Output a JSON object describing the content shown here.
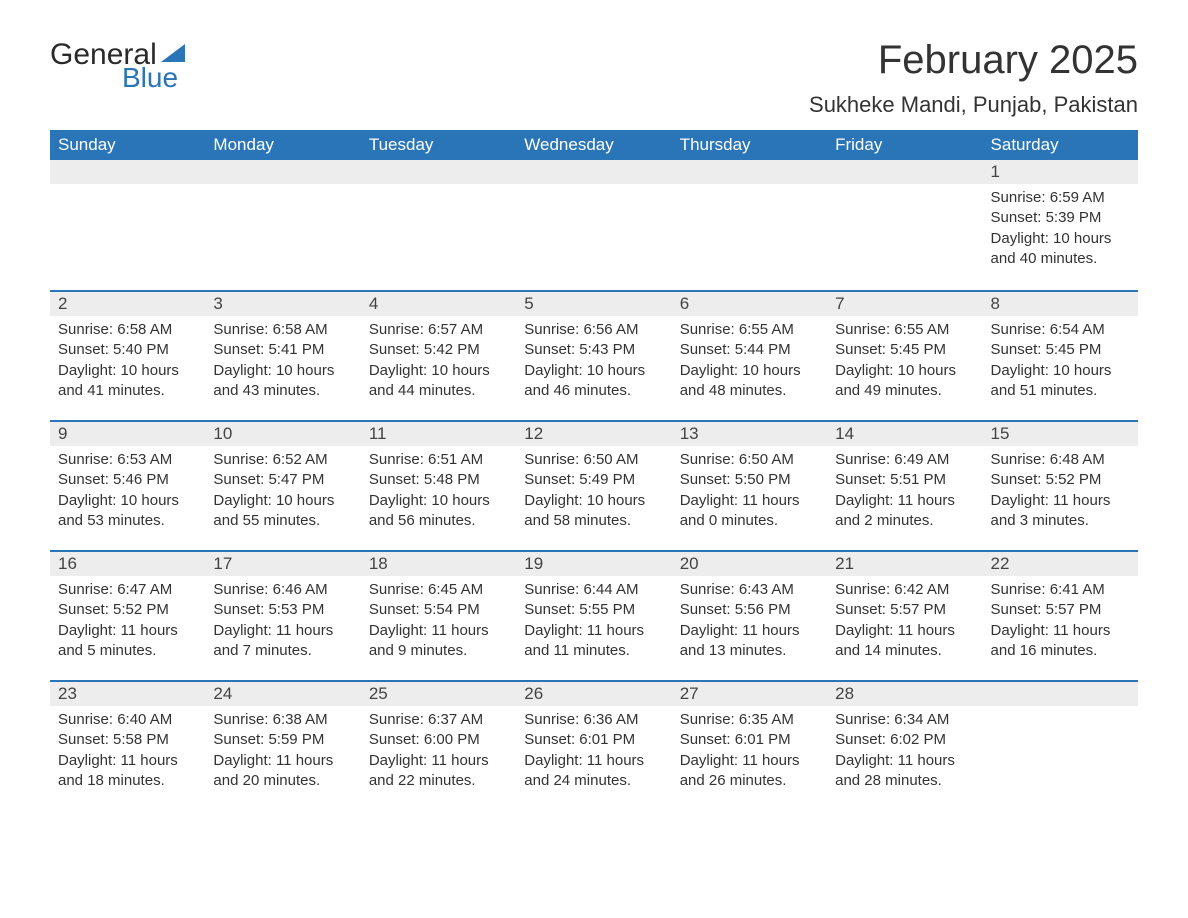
{
  "logo": {
    "text1": "General",
    "text2": "Blue",
    "text1_color": "#292929",
    "text2_color": "#2a74b8"
  },
  "title": "February 2025",
  "location": "Sukheke Mandi, Punjab, Pakistan",
  "colors": {
    "header_bg": "#2a74b8",
    "header_text": "#ffffff",
    "dayrow_bg": "#ededed",
    "dayrow_border": "#2a74b8",
    "body_text": "#333333",
    "page_bg": "#ffffff"
  },
  "fonts": {
    "title_size": 40,
    "location_size": 22,
    "header_size": 17,
    "body_size": 15
  },
  "columns": [
    "Sunday",
    "Monday",
    "Tuesday",
    "Wednesday",
    "Thursday",
    "Friday",
    "Saturday"
  ],
  "weeks": [
    [
      null,
      null,
      null,
      null,
      null,
      null,
      {
        "d": "1",
        "sunrise": "6:59 AM",
        "sunset": "5:39 PM",
        "daylight": "10 hours and 40 minutes."
      }
    ],
    [
      {
        "d": "2",
        "sunrise": "6:58 AM",
        "sunset": "5:40 PM",
        "daylight": "10 hours and 41 minutes."
      },
      {
        "d": "3",
        "sunrise": "6:58 AM",
        "sunset": "5:41 PM",
        "daylight": "10 hours and 43 minutes."
      },
      {
        "d": "4",
        "sunrise": "6:57 AM",
        "sunset": "5:42 PM",
        "daylight": "10 hours and 44 minutes."
      },
      {
        "d": "5",
        "sunrise": "6:56 AM",
        "sunset": "5:43 PM",
        "daylight": "10 hours and 46 minutes."
      },
      {
        "d": "6",
        "sunrise": "6:55 AM",
        "sunset": "5:44 PM",
        "daylight": "10 hours and 48 minutes."
      },
      {
        "d": "7",
        "sunrise": "6:55 AM",
        "sunset": "5:45 PM",
        "daylight": "10 hours and 49 minutes."
      },
      {
        "d": "8",
        "sunrise": "6:54 AM",
        "sunset": "5:45 PM",
        "daylight": "10 hours and 51 minutes."
      }
    ],
    [
      {
        "d": "9",
        "sunrise": "6:53 AM",
        "sunset": "5:46 PM",
        "daylight": "10 hours and 53 minutes."
      },
      {
        "d": "10",
        "sunrise": "6:52 AM",
        "sunset": "5:47 PM",
        "daylight": "10 hours and 55 minutes."
      },
      {
        "d": "11",
        "sunrise": "6:51 AM",
        "sunset": "5:48 PM",
        "daylight": "10 hours and 56 minutes."
      },
      {
        "d": "12",
        "sunrise": "6:50 AM",
        "sunset": "5:49 PM",
        "daylight": "10 hours and 58 minutes."
      },
      {
        "d": "13",
        "sunrise": "6:50 AM",
        "sunset": "5:50 PM",
        "daylight": "11 hours and 0 minutes."
      },
      {
        "d": "14",
        "sunrise": "6:49 AM",
        "sunset": "5:51 PM",
        "daylight": "11 hours and 2 minutes."
      },
      {
        "d": "15",
        "sunrise": "6:48 AM",
        "sunset": "5:52 PM",
        "daylight": "11 hours and 3 minutes."
      }
    ],
    [
      {
        "d": "16",
        "sunrise": "6:47 AM",
        "sunset": "5:52 PM",
        "daylight": "11 hours and 5 minutes."
      },
      {
        "d": "17",
        "sunrise": "6:46 AM",
        "sunset": "5:53 PM",
        "daylight": "11 hours and 7 minutes."
      },
      {
        "d": "18",
        "sunrise": "6:45 AM",
        "sunset": "5:54 PM",
        "daylight": "11 hours and 9 minutes."
      },
      {
        "d": "19",
        "sunrise": "6:44 AM",
        "sunset": "5:55 PM",
        "daylight": "11 hours and 11 minutes."
      },
      {
        "d": "20",
        "sunrise": "6:43 AM",
        "sunset": "5:56 PM",
        "daylight": "11 hours and 13 minutes."
      },
      {
        "d": "21",
        "sunrise": "6:42 AM",
        "sunset": "5:57 PM",
        "daylight": "11 hours and 14 minutes."
      },
      {
        "d": "22",
        "sunrise": "6:41 AM",
        "sunset": "5:57 PM",
        "daylight": "11 hours and 16 minutes."
      }
    ],
    [
      {
        "d": "23",
        "sunrise": "6:40 AM",
        "sunset": "5:58 PM",
        "daylight": "11 hours and 18 minutes."
      },
      {
        "d": "24",
        "sunrise": "6:38 AM",
        "sunset": "5:59 PM",
        "daylight": "11 hours and 20 minutes."
      },
      {
        "d": "25",
        "sunrise": "6:37 AM",
        "sunset": "6:00 PM",
        "daylight": "11 hours and 22 minutes."
      },
      {
        "d": "26",
        "sunrise": "6:36 AM",
        "sunset": "6:01 PM",
        "daylight": "11 hours and 24 minutes."
      },
      {
        "d": "27",
        "sunrise": "6:35 AM",
        "sunset": "6:01 PM",
        "daylight": "11 hours and 26 minutes."
      },
      {
        "d": "28",
        "sunrise": "6:34 AM",
        "sunset": "6:02 PM",
        "daylight": "11 hours and 28 minutes."
      },
      null
    ]
  ],
  "labels": {
    "sunrise": "Sunrise:",
    "sunset": "Sunset:",
    "daylight": "Daylight:"
  }
}
